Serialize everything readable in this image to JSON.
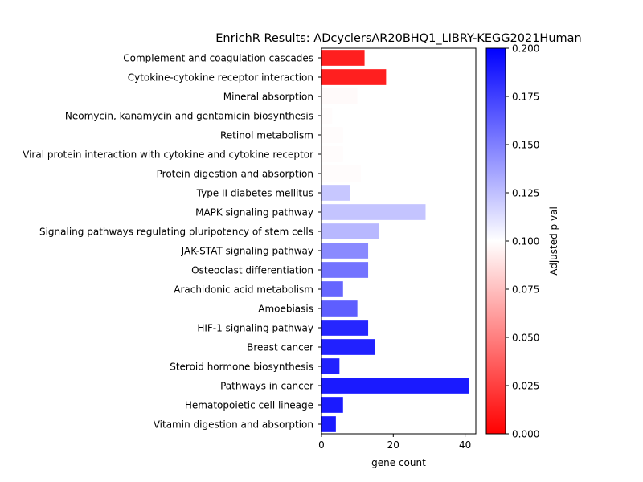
{
  "chart_data": {
    "type": "bar",
    "orientation": "horizontal",
    "title": "EnrichR Results: ADcyclersAR20BHQ1_LIBRY-KEGG2021Human",
    "xlabel": "gene count",
    "ylabel": "",
    "xlim": [
      0,
      43
    ],
    "xticks": [
      0,
      20,
      40
    ],
    "categories": [
      "Complement and coagulation cascades",
      "Cytokine-cytokine receptor interaction",
      "Mineral absorption",
      "Neomycin, kanamycin and gentamicin biosynthesis",
      "Retinol metabolism",
      "Viral protein interaction with cytokine and cytokine receptor",
      "Protein digestion and absorption",
      "Type II diabetes mellitus",
      "MAPK signaling pathway",
      "Signaling pathways regulating pluripotency of stem cells",
      "JAK-STAT signaling pathway",
      "Osteoclast differentiation",
      "Arachidonic acid metabolism",
      "Amoebiasis",
      "HIF-1 signaling pathway",
      "Breast cancer",
      "Steroid hormone biosynthesis",
      "Pathways in cancer",
      "Hematopoietic cell lineage",
      "Vitamin digestion and absorption"
    ],
    "values": [
      12,
      18,
      10,
      3,
      6,
      6,
      11,
      8,
      29,
      16,
      13,
      13,
      6,
      10,
      13,
      15,
      5,
      41,
      6,
      4
    ],
    "adjusted_p": [
      0.012,
      0.012,
      0.098,
      0.099,
      0.099,
      0.099,
      0.099,
      0.122,
      0.123,
      0.128,
      0.146,
      0.155,
      0.16,
      0.163,
      0.185,
      0.187,
      0.187,
      0.19,
      0.19,
      0.19
    ],
    "colorbar": {
      "label": "Adjusted p val",
      "range": [
        0.0,
        0.2
      ],
      "ticks": [
        "0.000",
        "0.025",
        "0.050",
        "0.075",
        "0.100",
        "0.125",
        "0.150",
        "0.175",
        "0.200"
      ],
      "colors": [
        "#ff0000",
        "#ffffff",
        "#0000ff"
      ]
    }
  }
}
